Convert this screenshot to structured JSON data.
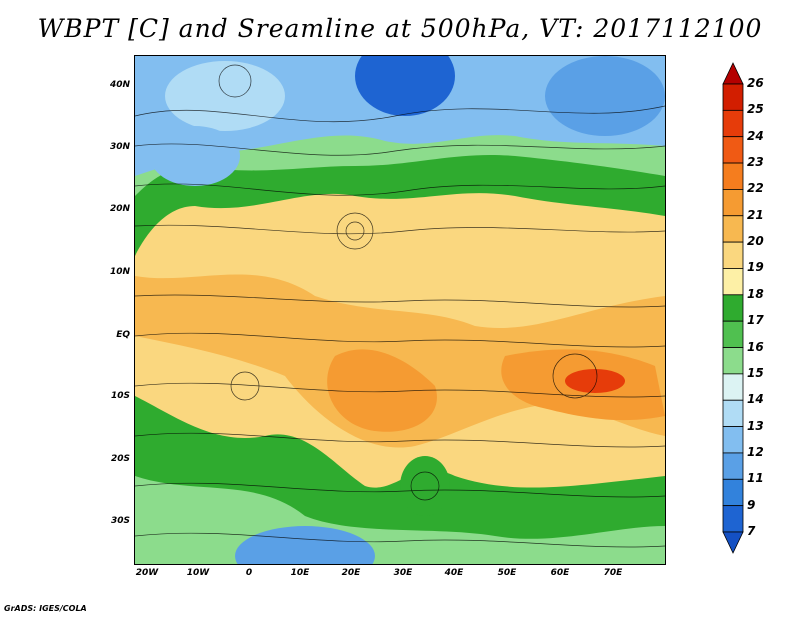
{
  "title": "WBPT [C] and Sreamline at 500hPa, VT: 2017112100",
  "credit": "GrADS: IGES/COLA",
  "lat_labels": [
    "40N",
    "30N",
    "20N",
    "10N",
    "EQ",
    "10S",
    "20S",
    "30S"
  ],
  "lon_labels": [
    "20W",
    "10W",
    "0",
    "10E",
    "20E",
    "30E",
    "40E",
    "50E",
    "60E",
    "70E"
  ],
  "colorbar": {
    "labels": [
      "26",
      "25",
      "24",
      "23",
      "22",
      "21",
      "20",
      "19",
      "18",
      "17",
      "16",
      "15",
      "14",
      "13",
      "12",
      "11",
      "9",
      "7"
    ],
    "colors": [
      "#b40000",
      "#d21e00",
      "#e63c0a",
      "#f05a14",
      "#f57d1e",
      "#f59b32",
      "#f7b850",
      "#fad77f",
      "#fdf0a6",
      "#2fab2f",
      "#50c050",
      "#8cdc8c",
      "#dcf3f3",
      "#b0dcf5",
      "#82bef0",
      "#5aa0e6",
      "#3282dc",
      "#1e64d2",
      "#1450c3"
    ]
  }
}
